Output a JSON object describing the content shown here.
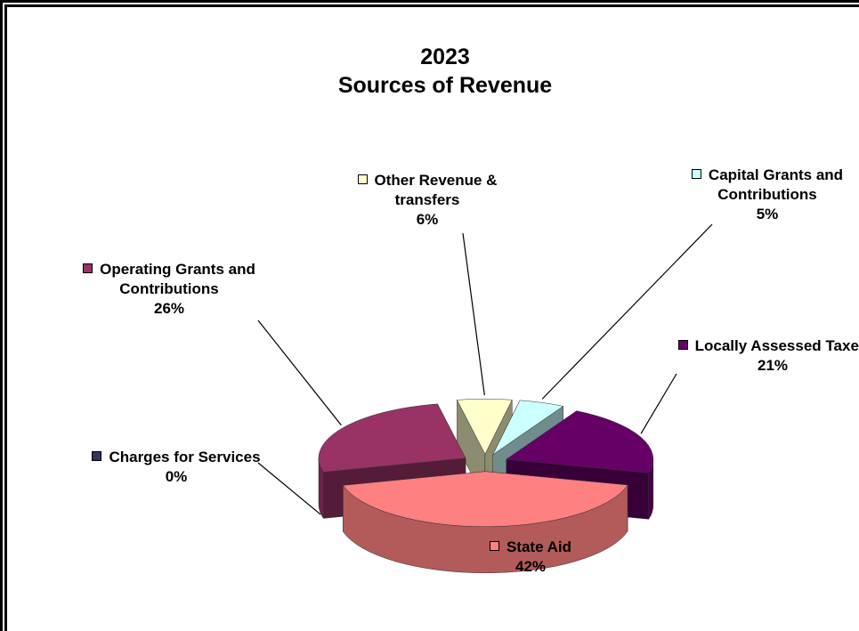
{
  "chart_data": {
    "type": "pie",
    "title": "2023",
    "subtitle": "Sources of Revenue",
    "categories": [
      "Other Revenue & transfers",
      "Capital Grants and Contributions",
      "Locally Assessed Taxes",
      "State Aid",
      "Charges for Services",
      "Operating Grants and Contributions"
    ],
    "values": [
      6,
      5,
      21,
      42,
      0,
      26
    ],
    "value_labels": [
      "6%",
      "5%",
      "21%",
      "42%",
      "0%",
      "26%"
    ],
    "colors": [
      "#ffffcc",
      "#ccffff",
      "#660066",
      "#ff8080",
      "#333366",
      "#993366"
    ]
  }
}
